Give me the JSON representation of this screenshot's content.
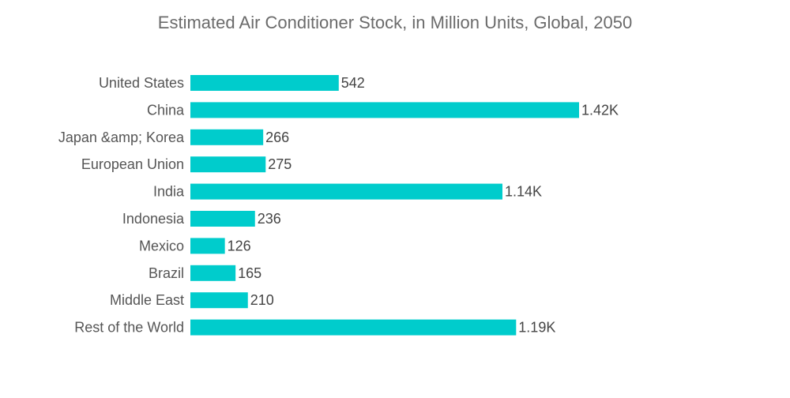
{
  "chart_data": {
    "type": "bar",
    "orientation": "horizontal",
    "title": "Estimated Air Conditioner Stock, in Million Units, Global, 2050",
    "xlabel": "",
    "ylabel": "",
    "categories": [
      "United States",
      "China",
      "Japan &amp; Korea",
      "European Union",
      "India",
      "Indonesia",
      "Mexico",
      "Brazil",
      "Middle East",
      "Rest of the World"
    ],
    "values": [
      542,
      1420,
      266,
      275,
      1140,
      236,
      126,
      165,
      210,
      1190
    ],
    "value_labels": [
      "542",
      "1.42K",
      "266",
      "275",
      "1.14K",
      "236",
      "126",
      "165",
      "210",
      "1.19K"
    ],
    "bar_color": "#00cccc",
    "xlim": [
      0,
      1420
    ],
    "grid": false,
    "legend": "none"
  }
}
